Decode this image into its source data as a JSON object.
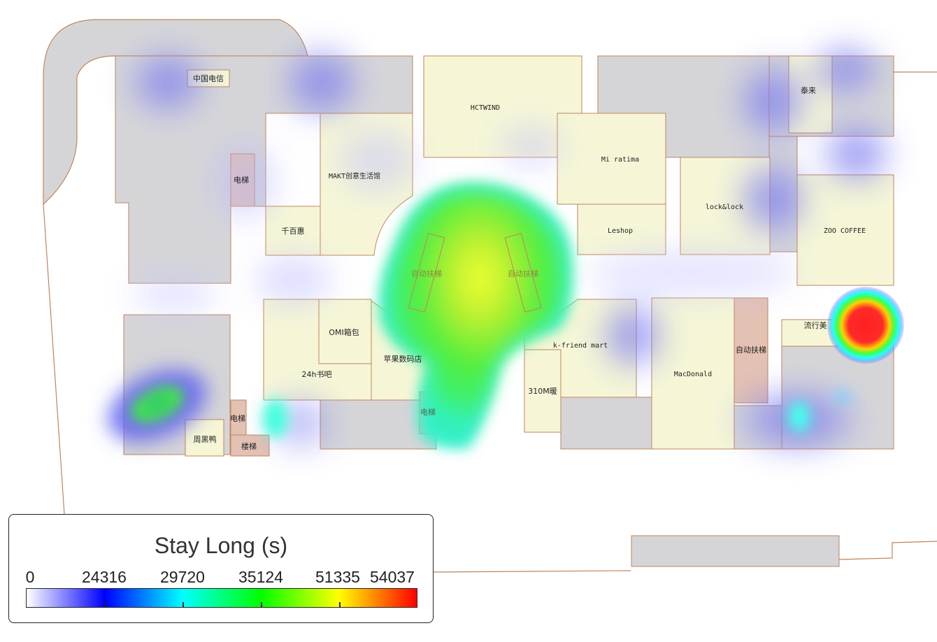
{
  "map": {
    "stores": [
      {
        "key": "zhongguo-dianxin",
        "label": "中国电信"
      },
      {
        "key": "dianti-1",
        "label": "电梯"
      },
      {
        "key": "makt",
        "label": "MAKT创意生活馆"
      },
      {
        "key": "qianbaihui",
        "label": "千百惠"
      },
      {
        "key": "hctwind",
        "label": "HCTWIND"
      },
      {
        "key": "mi-ratima",
        "label": "Mi ratima"
      },
      {
        "key": "leshop",
        "label": "Leshop"
      },
      {
        "key": "lock-lock",
        "label": "lock&lock"
      },
      {
        "key": "tailai",
        "label": "泰来"
      },
      {
        "key": "zoo-coffee",
        "label": "ZOO COFFEE"
      },
      {
        "key": "escalator-left",
        "label": "自动扶梯"
      },
      {
        "key": "escalator-right",
        "label": "自动扶梯"
      },
      {
        "key": "omi",
        "label": "OMI箱包"
      },
      {
        "key": "shuba-24h",
        "label": "24h书吧"
      },
      {
        "key": "pingguo",
        "label": "苹果数码店"
      },
      {
        "key": "dianti-2",
        "label": "电梯"
      },
      {
        "key": "k-friend",
        "label": "k-friend mart"
      },
      {
        "key": "nuan-310m",
        "label": "310M暖"
      },
      {
        "key": "macdonald",
        "label": "MacDonald"
      },
      {
        "key": "escalator-east",
        "label": "自动扶梯"
      },
      {
        "key": "liuxingmei",
        "label": "流行美"
      },
      {
        "key": "dianti-3",
        "label": "电梯"
      },
      {
        "key": "zhouheiya",
        "label": "周黑鸭"
      },
      {
        "key": "louti",
        "label": "楼梯"
      }
    ],
    "colors": {
      "shop_fill": "#f6f6d7",
      "blocked_fill": "#d5d5d8",
      "outline": "#c0855a",
      "elevator_fill": "#e3c1b3"
    }
  },
  "legend": {
    "title": "Stay Long (s)",
    "ticks": [
      "0",
      "24316",
      "29720",
      "35124",
      "51335",
      "54037"
    ],
    "colorscale": [
      "#ffffff",
      "#0000ff",
      "#00ffff",
      "#00ff00",
      "#ffff00",
      "#ff0000"
    ]
  }
}
